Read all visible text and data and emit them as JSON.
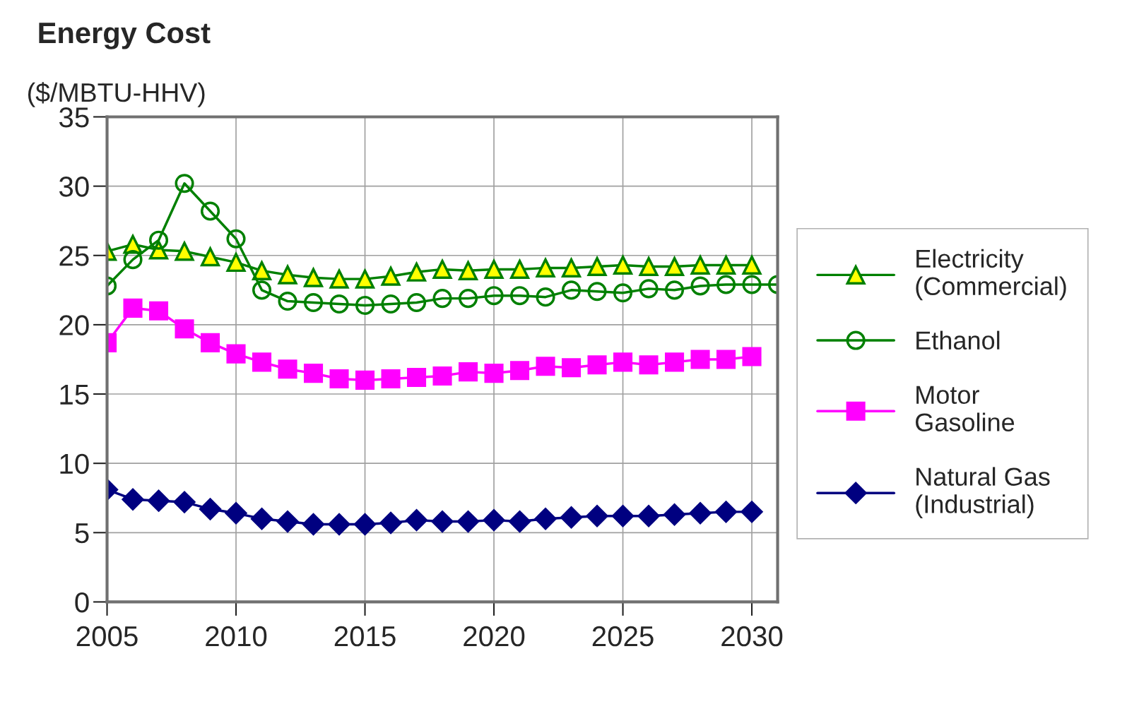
{
  "chart_data": {
    "type": "line",
    "title": "Energy Cost",
    "ylabel": "($/MBTU-HHV)",
    "x": [
      2005,
      2006,
      2007,
      2008,
      2009,
      2010,
      2011,
      2012,
      2013,
      2014,
      2015,
      2016,
      2017,
      2018,
      2019,
      2020,
      2021,
      2022,
      2023,
      2024,
      2025,
      2026,
      2027,
      2028,
      2029,
      2030
    ],
    "series": [
      {
        "name": "Electricity\n(Commercial)",
        "color": "#008000",
        "marker": "triangle",
        "values": [
          25.3,
          25.8,
          25.4,
          25.3,
          24.9,
          24.5,
          23.9,
          23.6,
          23.4,
          23.3,
          23.3,
          23.5,
          23.8,
          24.0,
          23.9,
          24.0,
          24.0,
          24.1,
          24.1,
          24.2,
          24.3,
          24.2,
          24.2,
          24.3,
          24.3,
          24.3
        ]
      },
      {
        "name": "Ethanol",
        "color": "#008000",
        "marker": "circle",
        "x": [
          2005,
          2006,
          2007,
          2008,
          2009,
          2010,
          2011,
          2012,
          2013,
          2014,
          2015,
          2016,
          2017,
          2018,
          2019,
          2020,
          2021,
          2022,
          2023,
          2024,
          2025,
          2026,
          2027,
          2028,
          2029,
          2030,
          2031
        ],
        "values": [
          22.8,
          24.7,
          26.1,
          30.2,
          28.2,
          26.2,
          22.5,
          21.7,
          21.6,
          21.5,
          21.4,
          21.5,
          21.6,
          21.9,
          21.9,
          22.1,
          22.1,
          22.0,
          22.5,
          22.4,
          22.3,
          22.6,
          22.5,
          22.8,
          22.9,
          22.9,
          22.9
        ]
      },
      {
        "name": "Motor\nGasoline",
        "color": "#ff00ff",
        "marker": "square",
        "values": [
          18.7,
          21.2,
          21.0,
          19.7,
          18.7,
          17.9,
          17.3,
          16.8,
          16.5,
          16.1,
          16.0,
          16.1,
          16.2,
          16.3,
          16.6,
          16.5,
          16.7,
          17.0,
          16.9,
          17.1,
          17.3,
          17.1,
          17.3,
          17.5,
          17.5,
          17.7
        ]
      },
      {
        "name": "Natural Gas\n(Industrial)",
        "color": "#000080",
        "marker": "diamond",
        "values": [
          8.1,
          7.4,
          7.3,
          7.2,
          6.7,
          6.4,
          6.0,
          5.8,
          5.6,
          5.6,
          5.6,
          5.7,
          5.9,
          5.8,
          5.8,
          5.9,
          5.8,
          6.0,
          6.1,
          6.2,
          6.2,
          6.2,
          6.3,
          6.4,
          6.5,
          6.5
        ]
      }
    ],
    "xlim": [
      2005,
      2031
    ],
    "xticks": [
      2005,
      2010,
      2015,
      2020,
      2025,
      2030
    ],
    "ylim": [
      0,
      35
    ],
    "yticks": [
      0,
      5,
      10,
      15,
      20,
      25,
      30,
      35
    ],
    "grid": true,
    "legend": "right",
    "line_style": "solid"
  }
}
